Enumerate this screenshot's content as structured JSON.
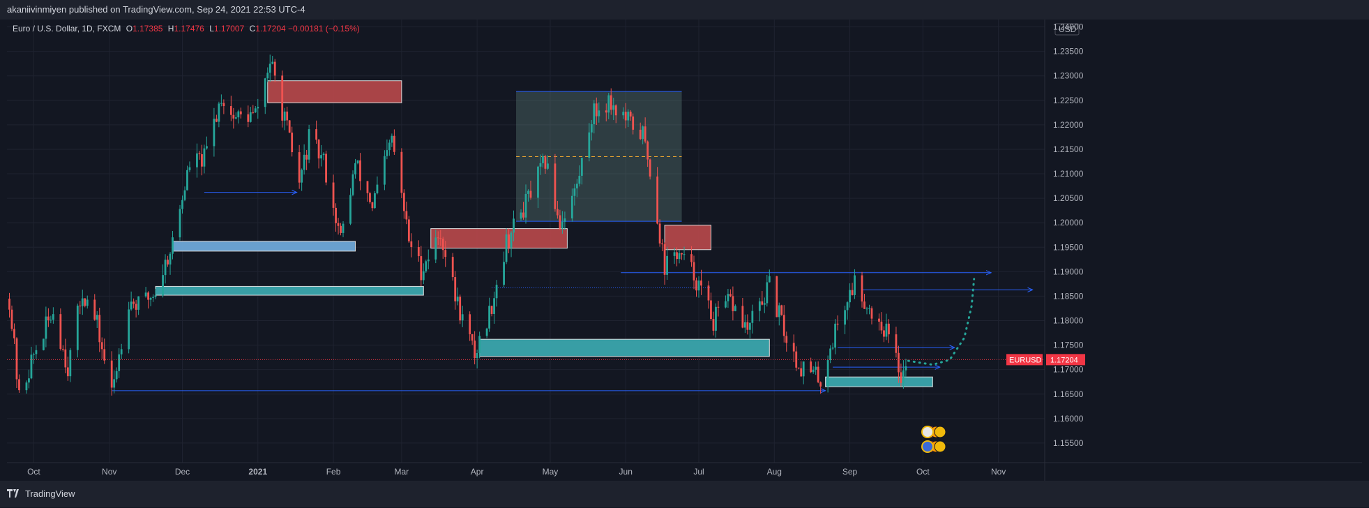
{
  "header": {
    "publisher_line": "akaniivinmiyen published on TradingView.com, Sep 24, 2021 22:53 UTC-4"
  },
  "legend": {
    "symbol": "Euro / U.S. Dollar, 1D, FXCM",
    "o_label": "O",
    "o_value": "1.17385",
    "h_label": "H",
    "h_value": "1.17476",
    "l_label": "L",
    "l_value": "1.17007",
    "c_label": "C",
    "c_value": "1.17204",
    "change": "−0.00181 (−0.15%)"
  },
  "footer": {
    "brand": "TradingView"
  },
  "colors": {
    "background": "#131722",
    "up": "#26a69a",
    "down": "#ef5350",
    "bearish_zone": "#b2474a",
    "bullish_zone": "#3aa6ad",
    "blue_zone": "#6ea8d8",
    "line_blue": "#2962ff",
    "last_price": "#f23645",
    "projection": "#26a69a"
  },
  "chart_data": {
    "type": "candlestick",
    "symbol": "EURUSD",
    "currency": "USD",
    "last_price_label": "1.17204",
    "last_price": 1.17204,
    "ylim": [
      1.151,
      1.2415
    ],
    "y_ticks": [
      "1.24000",
      "1.23500",
      "1.23000",
      "1.22500",
      "1.22000",
      "1.21500",
      "1.21000",
      "1.20500",
      "1.20000",
      "1.19500",
      "1.19000",
      "1.18500",
      "1.18000",
      "1.17500",
      "1.17000",
      "1.16500",
      "1.16000",
      "1.15500"
    ],
    "x_range": [
      "2020-09-20",
      "2021-11-20"
    ],
    "x_ticks": [
      {
        "label": "Oct",
        "date": "2020-10-01"
      },
      {
        "label": "Nov",
        "date": "2020-11-01"
      },
      {
        "label": "Dec",
        "date": "2020-12-01"
      },
      {
        "label": "2021",
        "date": "2021-01-01"
      },
      {
        "label": "Feb",
        "date": "2021-02-01"
      },
      {
        "label": "Mar",
        "date": "2021-03-01"
      },
      {
        "label": "Apr",
        "date": "2021-04-01"
      },
      {
        "label": "May",
        "date": "2021-05-01"
      },
      {
        "label": "Jun",
        "date": "2021-06-01"
      },
      {
        "label": "Jul",
        "date": "2021-07-01"
      },
      {
        "label": "Aug",
        "date": "2021-08-01"
      },
      {
        "label": "Sep",
        "date": "2021-09-01"
      },
      {
        "label": "Oct",
        "date": "2021-10-01"
      },
      {
        "label": "Nov",
        "date": "2021-11-01"
      }
    ],
    "price_path": [
      [
        "2020-09-21",
        1.1845
      ],
      [
        "2020-09-25",
        1.164
      ],
      [
        "2020-10-01",
        1.173
      ],
      [
        "2020-10-09",
        1.182
      ],
      [
        "2020-10-15",
        1.1705
      ],
      [
        "2020-10-21",
        1.186
      ],
      [
        "2020-10-27",
        1.179
      ],
      [
        "2020-11-02",
        1.165
      ],
      [
        "2020-11-09",
        1.1845
      ],
      [
        "2020-11-13",
        1.183
      ],
      [
        "2020-11-20",
        1.186
      ],
      [
        "2020-11-27",
        1.196
      ],
      [
        "2020-12-04",
        1.212
      ],
      [
        "2020-12-10",
        1.213
      ],
      [
        "2020-12-17",
        1.226
      ],
      [
        "2020-12-22",
        1.2215
      ],
      [
        "2020-12-31",
        1.222
      ],
      [
        "2021-01-06",
        1.233
      ],
      [
        "2021-01-12",
        1.221
      ],
      [
        "2021-01-18",
        1.208
      ],
      [
        "2021-01-22",
        1.217
      ],
      [
        "2021-01-28",
        1.2125
      ],
      [
        "2021-02-04",
        1.1965
      ],
      [
        "2021-02-10",
        1.212
      ],
      [
        "2021-02-17",
        1.2035
      ],
      [
        "2021-02-25",
        1.217
      ],
      [
        "2021-03-04",
        1.1965
      ],
      [
        "2021-03-09",
        1.1905
      ],
      [
        "2021-03-17",
        1.198
      ],
      [
        "2021-03-23",
        1.185
      ],
      [
        "2021-03-31",
        1.173
      ],
      [
        "2021-04-06",
        1.1815
      ],
      [
        "2021-04-13",
        1.196
      ],
      [
        "2021-04-21",
        1.204
      ],
      [
        "2021-04-29",
        1.2125
      ],
      [
        "2021-05-05",
        1.2
      ],
      [
        "2021-05-12",
        1.2075
      ],
      [
        "2021-05-18",
        1.222
      ],
      [
        "2021-05-25",
        1.225
      ],
      [
        "2021-06-01",
        1.221
      ],
      [
        "2021-06-08",
        1.218
      ],
      [
        "2021-06-11",
        1.211
      ],
      [
        "2021-06-17",
        1.191
      ],
      [
        "2021-06-22",
        1.194
      ],
      [
        "2021-06-29",
        1.1895
      ],
      [
        "2021-07-07",
        1.18
      ],
      [
        "2021-07-14",
        1.184
      ],
      [
        "2021-07-21",
        1.178
      ],
      [
        "2021-07-30",
        1.187
      ],
      [
        "2021-08-06",
        1.1765
      ],
      [
        "2021-08-11",
        1.171
      ],
      [
        "2021-08-20",
        1.168
      ],
      [
        "2021-08-27",
        1.1795
      ],
      [
        "2021-09-03",
        1.188
      ],
      [
        "2021-09-09",
        1.1825
      ],
      [
        "2021-09-16",
        1.178
      ],
      [
        "2021-09-22",
        1.169
      ],
      [
        "2021-09-24",
        1.172
      ]
    ],
    "zones": [
      {
        "kind": "bearish",
        "start": "2021-01-05",
        "end": "2021-03-01",
        "top": 1.229,
        "bottom": 1.2245
      },
      {
        "kind": "blue",
        "start": "2020-11-27",
        "end": "2021-02-10",
        "top": 1.1962,
        "bottom": 1.1942
      },
      {
        "kind": "bullish",
        "start": "2020-11-20",
        "end": "2021-03-10",
        "top": 1.187,
        "bottom": 1.1852
      },
      {
        "kind": "bearish",
        "start": "2021-03-13",
        "end": "2021-05-08",
        "top": 1.1988,
        "bottom": 1.1948
      },
      {
        "kind": "range",
        "start": "2021-04-17",
        "end": "2021-06-24",
        "top": 1.2268,
        "bottom": 1.2003,
        "mid": 1.2135
      },
      {
        "kind": "bearish",
        "start": "2021-06-17",
        "end": "2021-07-06",
        "top": 1.1995,
        "bottom": 1.1945
      },
      {
        "kind": "bullish",
        "start": "2021-04-02",
        "end": "2021-07-30",
        "top": 1.1762,
        "bottom": 1.1727
      },
      {
        "kind": "bullish",
        "start": "2021-08-22",
        "end": "2021-10-05",
        "top": 1.1685,
        "bottom": 1.1665
      }
    ],
    "lines": [
      {
        "start": "2020-12-10",
        "end": "2021-01-17",
        "value": 1.2062,
        "arrow": true
      },
      {
        "start": "2020-11-02",
        "end": "2021-08-22",
        "value": 1.1657,
        "arrow": true
      },
      {
        "start": "2021-05-30",
        "end": "2021-10-29",
        "value": 1.1898,
        "arrow": true
      },
      {
        "start": "2021-09-06",
        "end": "2021-11-15",
        "value": 1.1863,
        "arrow": true
      },
      {
        "start": "2021-08-27",
        "end": "2021-10-14",
        "value": 1.1745,
        "arrow": true
      },
      {
        "start": "2021-08-25",
        "end": "2021-10-08",
        "value": 1.1705,
        "arrow": true
      },
      {
        "start": "2021-04-07",
        "end": "2021-07-06",
        "value": 1.1867,
        "arrow": false,
        "dotted": true
      }
    ],
    "projection": [
      [
        "2021-09-25",
        1.1718
      ],
      [
        "2021-10-05",
        1.171
      ],
      [
        "2021-10-12",
        1.172
      ],
      [
        "2021-10-18",
        1.1765
      ],
      [
        "2021-10-21",
        1.183
      ],
      [
        "2021-10-22",
        1.1885
      ]
    ]
  }
}
